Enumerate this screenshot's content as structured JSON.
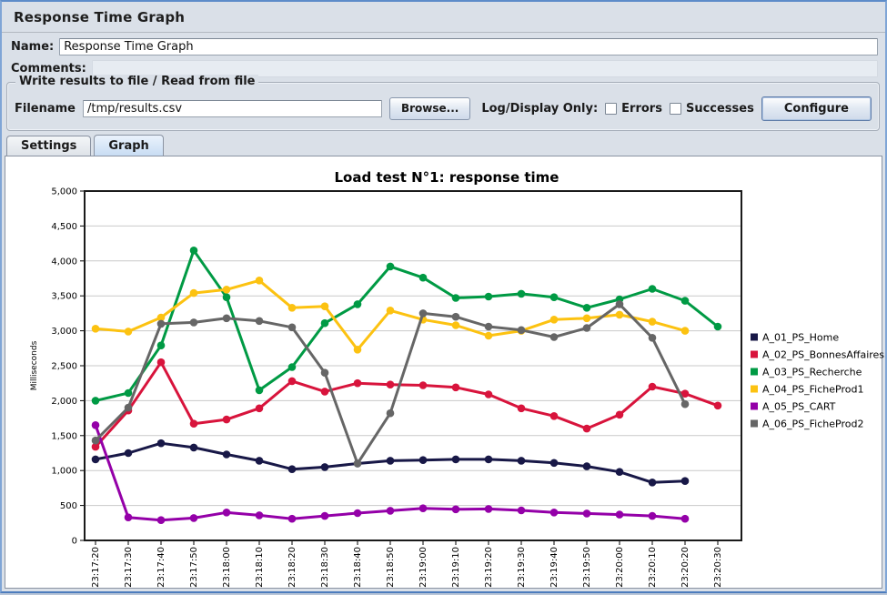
{
  "window": {
    "title": "Response Time Graph"
  },
  "form": {
    "name_label": "Name:",
    "name_value": "Response Time Graph",
    "comments_label": "Comments:",
    "comments_value": "",
    "file_group_title": "Write results to file / Read from file",
    "filename_label": "Filename",
    "filename_value": "/tmp/results.csv",
    "browse_label": "Browse...",
    "log_display_label": "Log/Display Only:",
    "errors_label": "Errors",
    "successes_label": "Successes",
    "configure_label": "Configure"
  },
  "tabs": [
    {
      "label": "Settings",
      "active": false
    },
    {
      "label": "Graph",
      "active": true
    }
  ],
  "chart_data": {
    "type": "line",
    "title": "Load test N°1: response time",
    "xlabel": "",
    "ylabel": "Milliseconds",
    "ylim": [
      0,
      5000
    ],
    "ytick_step": 500,
    "grid": "horizontal",
    "legend_position": "right",
    "x": [
      "23:17:20",
      "23:17:30",
      "23:17:40",
      "23:17:50",
      "23:18:00",
      "23:18:10",
      "23:18:20",
      "23:18:30",
      "23:18:40",
      "23:18:50",
      "23:19:00",
      "23:19:10",
      "23:19:20",
      "23:19:30",
      "23:19:40",
      "23:19:50",
      "23:20:00",
      "23:20:10",
      "23:20:20",
      "23:20:30"
    ],
    "series": [
      {
        "name": "A_01_PS_Home",
        "color": "#181847",
        "values": [
          1160,
          1250,
          1390,
          1330,
          1230,
          1140,
          1020,
          1050,
          1100,
          1140,
          1150,
          1160,
          1160,
          1140,
          1110,
          1060,
          980,
          830,
          850,
          null
        ]
      },
      {
        "name": "A_02_PS_BonnesAffaires",
        "color": "#d8143c",
        "values": [
          1340,
          1860,
          2550,
          1670,
          1730,
          1890,
          2280,
          2130,
          2250,
          2230,
          2220,
          2190,
          2090,
          1890,
          1780,
          1600,
          1800,
          2200,
          2100,
          1930
        ]
      },
      {
        "name": "A_03_PS_Recherche",
        "color": "#009a44",
        "values": [
          2000,
          2110,
          2790,
          4150,
          3480,
          2150,
          2480,
          3110,
          3380,
          3920,
          3760,
          3470,
          3490,
          3530,
          3480,
          3330,
          3450,
          3600,
          3430,
          3060
        ]
      },
      {
        "name": "A_04_PS_FicheProd1",
        "color": "#fcc211",
        "values": [
          3030,
          2990,
          3190,
          3540,
          3590,
          3720,
          3330,
          3350,
          2730,
          3290,
          3160,
          3080,
          2930,
          3000,
          3160,
          3180,
          3230,
          3130,
          3000,
          null
        ]
      },
      {
        "name": "A_05_PS_CART",
        "color": "#9400a8",
        "values": [
          1650,
          330,
          290,
          320,
          400,
          360,
          310,
          350,
          390,
          425,
          460,
          445,
          450,
          430,
          400,
          385,
          370,
          350,
          310,
          null
        ]
      },
      {
        "name": "A_06_PS_FicheProd2",
        "color": "#666666",
        "values": [
          1430,
          1900,
          3100,
          3120,
          3180,
          3140,
          3050,
          2400,
          1100,
          1820,
          3250,
          3200,
          3060,
          3010,
          2910,
          3040,
          3380,
          2900,
          1950,
          null
        ]
      }
    ]
  }
}
